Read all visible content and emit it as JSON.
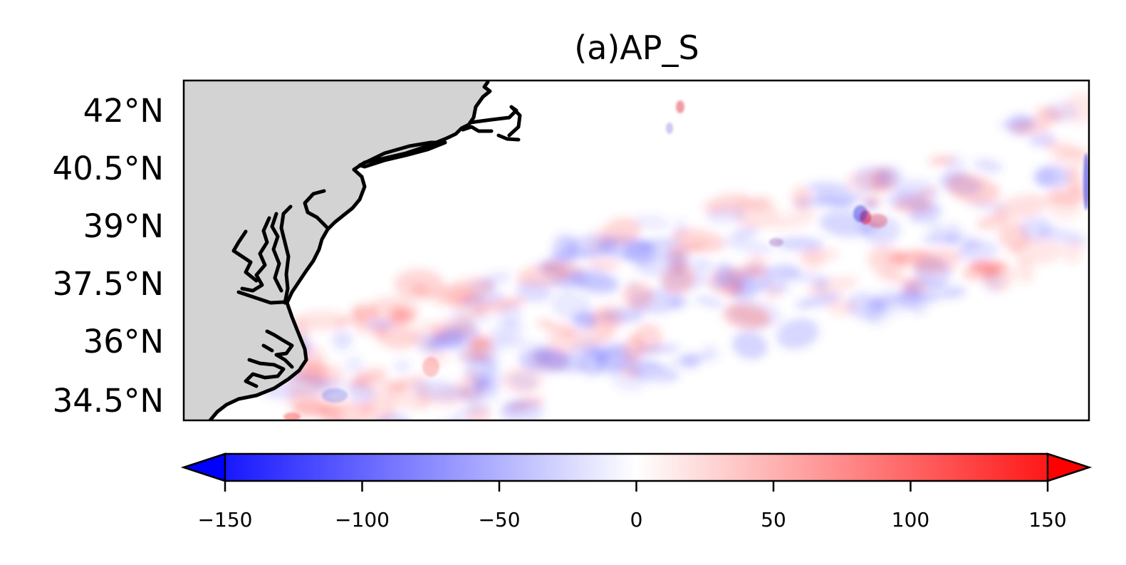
{
  "title": "(a)AP_S",
  "map": {
    "latitude_labels": [
      "42°N",
      "40.5°N",
      "39°N",
      "37.5°N",
      "36°N",
      "34.5°N"
    ],
    "land_color": "#d3d3d3",
    "coastline_color": "#000000",
    "field_colormap": "bwr"
  },
  "colorbar": {
    "ticks": [
      "−150",
      "−100",
      "−50",
      "0",
      "50",
      "100",
      "150"
    ],
    "tick_values": [
      -150,
      -100,
      -50,
      0,
      50,
      100,
      150
    ],
    "range": [
      -150,
      150
    ],
    "extend": "both",
    "colors": {
      "low": "#0000ff",
      "mid": "#ffffff",
      "high": "#ff0000"
    }
  }
}
